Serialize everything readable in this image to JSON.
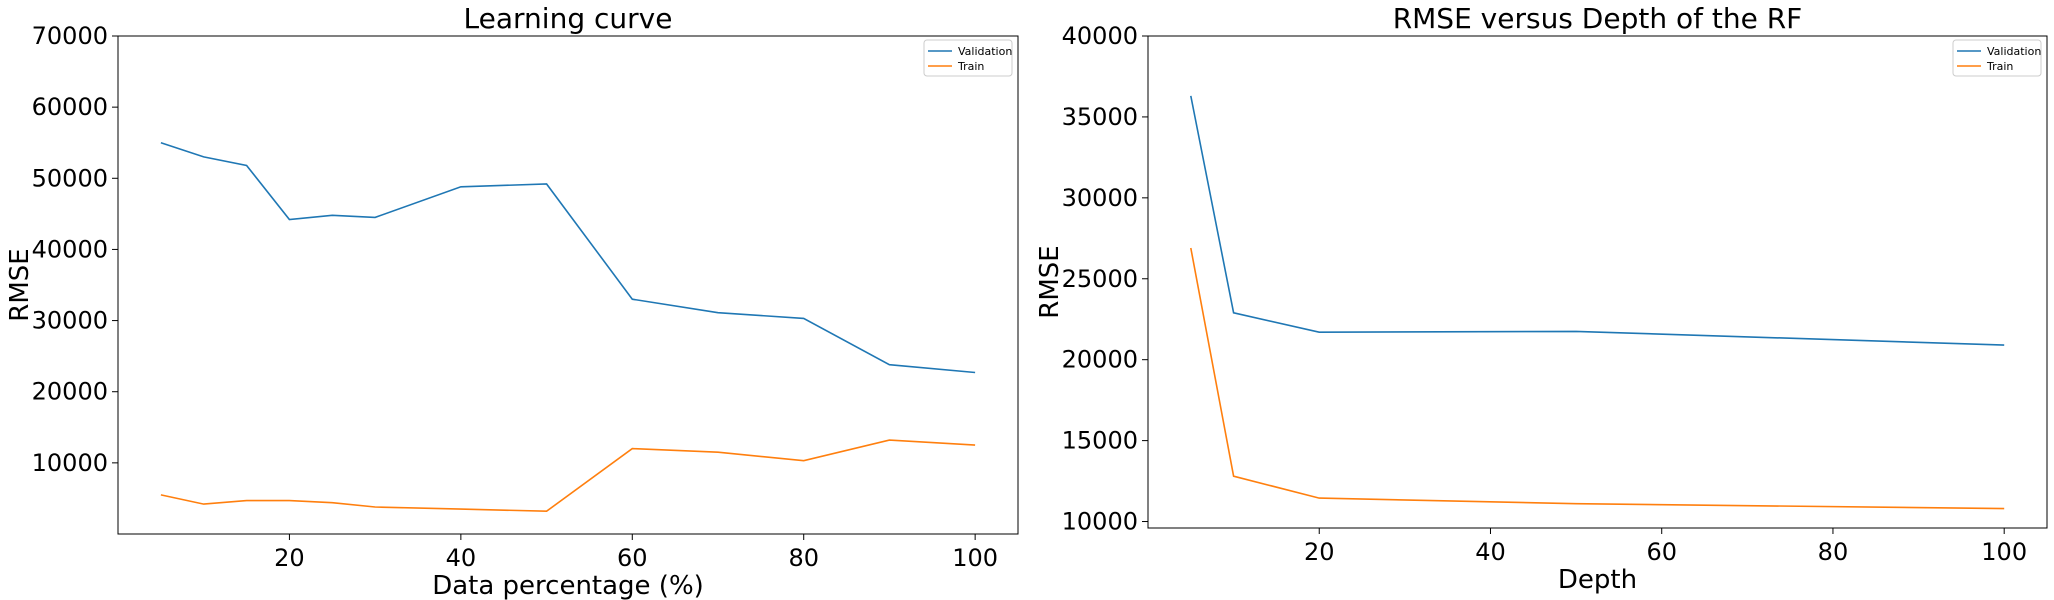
{
  "chart_data": [
    {
      "type": "line",
      "title": "Learning curve",
      "xlabel": "Data percentage (%)",
      "ylabel": "RMSE",
      "xlim": [
        0,
        105
      ],
      "ylim": [
        0,
        70000
      ],
      "xticks": [
        20,
        40,
        60,
        80,
        100
      ],
      "yticks": [
        10000,
        20000,
        30000,
        40000,
        50000,
        60000,
        70000
      ],
      "legend_position": "top-right",
      "grid": false,
      "series": [
        {
          "name": "Validation",
          "color": "#1f77b4",
          "x": [
            5,
            10,
            15,
            20,
            25,
            30,
            40,
            50,
            60,
            70,
            80,
            90,
            100
          ],
          "y": [
            55000,
            53000,
            51800,
            44200,
            44800,
            44500,
            48800,
            49200,
            33000,
            31100,
            30300,
            23800,
            22700
          ]
        },
        {
          "name": "Train",
          "color": "#ff7f0e",
          "x": [
            5,
            10,
            15,
            20,
            25,
            30,
            40,
            50,
            60,
            70,
            80,
            90,
            100
          ],
          "y": [
            5500,
            4200,
            4700,
            4700,
            4400,
            3800,
            3500,
            3200,
            12000,
            11500,
            10300,
            13200,
            12500
          ]
        }
      ]
    },
    {
      "type": "line",
      "title": "RMSE versus Depth of the RF",
      "xlabel": "Depth",
      "ylabel": "RMSE",
      "xlim": [
        0,
        105
      ],
      "ylim": [
        9600,
        40000
      ],
      "xticks": [
        20,
        40,
        60,
        80,
        100
      ],
      "yticks": [
        10000,
        15000,
        20000,
        25000,
        30000,
        35000,
        40000
      ],
      "legend_position": "top-right",
      "grid": false,
      "series": [
        {
          "name": "Validation",
          "color": "#1f77b4",
          "x": [
            5,
            10,
            20,
            50,
            100
          ],
          "y": [
            36300,
            22900,
            21700,
            21750,
            20900
          ]
        },
        {
          "name": "Train",
          "color": "#ff7f0e",
          "x": [
            5,
            10,
            20,
            50,
            100
          ],
          "y": [
            26900,
            12800,
            11450,
            11100,
            10800
          ]
        }
      ]
    }
  ]
}
